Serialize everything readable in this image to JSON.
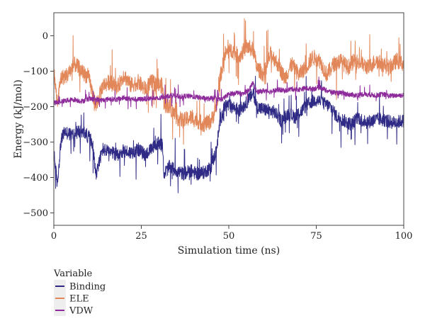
{
  "chart_data": {
    "type": "line",
    "xlabel": "Simulation time (ns)",
    "ylabel": "Energy (kJ/mol)",
    "xlim": [
      0,
      100
    ],
    "ylim": [
      -535,
      65
    ],
    "x_ticks": [
      0,
      25,
      50,
      75,
      100
    ],
    "x_tick_labels": [
      "0",
      "25",
      "50",
      "75",
      "100"
    ],
    "y_ticks": [
      0,
      -100,
      -200,
      -300,
      -400,
      -500
    ],
    "y_tick_labels": [
      "0",
      "−100",
      "−200",
      "−300",
      "−400",
      "−500"
    ],
    "grid": false,
    "legend": {
      "title": "Variable",
      "placement": "bottom-left, outside plot",
      "entries": [
        "Binding",
        "ELE",
        "VDW"
      ]
    },
    "series": [
      {
        "name": "Binding",
        "color": "#2e2a85",
        "x": [
          0,
          1,
          2,
          3,
          5,
          7,
          9,
          11,
          12,
          14,
          16,
          18,
          20,
          22,
          24,
          26,
          28,
          30,
          31,
          31.5,
          33,
          35,
          37,
          39,
          41,
          43,
          45,
          46.5,
          47.5,
          49,
          51,
          53,
          55,
          57,
          58,
          59,
          61,
          63,
          65,
          67,
          69,
          71,
          73,
          75,
          77,
          79,
          81,
          83,
          85,
          87,
          89,
          91,
          93,
          95,
          97,
          100
        ],
        "values": [
          -330,
          -420,
          -300,
          -270,
          -280,
          -270,
          -275,
          -300,
          -390,
          -320,
          -330,
          -335,
          -325,
          -330,
          -320,
          -335,
          -320,
          -300,
          -310,
          -390,
          -370,
          -380,
          -390,
          -380,
          -390,
          -385,
          -370,
          -320,
          -240,
          -195,
          -200,
          -210,
          -190,
          -160,
          -200,
          -205,
          -210,
          -215,
          -240,
          -220,
          -230,
          -210,
          -190,
          -180,
          -190,
          -200,
          -230,
          -240,
          -250,
          -230,
          -245,
          -240,
          -235,
          -240,
          -245,
          -240
        ]
      },
      {
        "name": "ELE",
        "color": "#e2875a",
        "x": [
          0,
          1,
          2,
          4,
          6,
          8,
          10,
          12,
          14,
          16,
          18,
          20,
          22,
          24,
          26,
          28,
          30,
          31,
          31.5,
          33,
          35,
          37,
          39,
          41,
          43,
          45,
          46.5,
          47.5,
          49,
          51,
          53,
          55,
          57,
          58,
          60,
          62,
          64,
          66,
          68,
          70,
          72,
          74,
          76,
          78,
          80,
          82,
          84,
          86,
          88,
          90,
          92,
          94,
          96,
          98,
          100
        ],
        "values": [
          -100,
          -190,
          -120,
          -110,
          -80,
          -100,
          -120,
          -200,
          -140,
          -130,
          -150,
          -110,
          -140,
          -130,
          -150,
          -130,
          -140,
          -140,
          -190,
          -200,
          -230,
          -240,
          -230,
          -240,
          -250,
          -240,
          -200,
          -120,
          -50,
          -40,
          -60,
          -30,
          -40,
          -90,
          -110,
          -50,
          -80,
          -120,
          -80,
          -110,
          -90,
          -60,
          -70,
          -110,
          -80,
          -70,
          -90,
          -70,
          -80,
          -90,
          -70,
          -80,
          -90,
          -70,
          -80
        ]
      },
      {
        "name": "VDW",
        "color": "#8e2b9b",
        "x": [
          0,
          2,
          4,
          6,
          8,
          10,
          12,
          14,
          16,
          18,
          20,
          22,
          24,
          26,
          28,
          30,
          32,
          34,
          36,
          38,
          40,
          42,
          44,
          46,
          48,
          50,
          52,
          54,
          56,
          57,
          58,
          60,
          62,
          64,
          66,
          68,
          70,
          72,
          74,
          76,
          78,
          80,
          82,
          84,
          86,
          88,
          90,
          92,
          94,
          96,
          98,
          100
        ],
        "values": [
          -190,
          -185,
          -182,
          -180,
          -185,
          -178,
          -180,
          -182,
          -178,
          -180,
          -175,
          -178,
          -180,
          -178,
          -176,
          -178,
          -170,
          -168,
          -172,
          -170,
          -172,
          -175,
          -178,
          -176,
          -180,
          -165,
          -160,
          -165,
          -150,
          -130,
          -160,
          -155,
          -158,
          -152,
          -155,
          -150,
          -152,
          -148,
          -150,
          -145,
          -155,
          -160,
          -162,
          -165,
          -168,
          -165,
          -166,
          -168,
          -165,
          -170,
          -168,
          -168
        ]
      }
    ]
  }
}
